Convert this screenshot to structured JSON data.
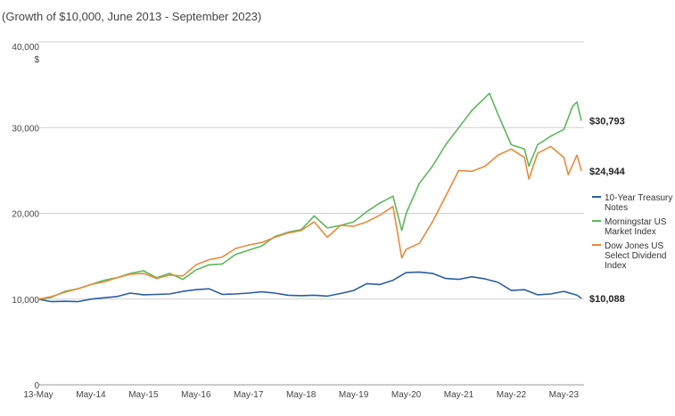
{
  "chart_data": {
    "type": "line",
    "subtitle": "(Growth of $10,000, June 2013 - September 2023)",
    "y_unit": "$",
    "ylim": [
      0,
      40000
    ],
    "yticks": [
      0,
      10000,
      20000,
      30000,
      40000
    ],
    "ytick_labels": [
      "0",
      "10,000",
      "20,000",
      "30,000",
      "40,000"
    ],
    "x_ticks": [
      "13-May",
      "May-14",
      "May-15",
      "May-16",
      "May-17",
      "May-18",
      "May-19",
      "May-20",
      "May-21",
      "May-22",
      "May-23"
    ],
    "x_tick_values": [
      "2013-05",
      "2014-05",
      "2015-05",
      "2016-05",
      "2017-05",
      "2018-05",
      "2019-05",
      "2020-05",
      "2021-05",
      "2022-05",
      "2023-05"
    ],
    "xlim": [
      "2013-05",
      "2023-09"
    ],
    "grid": true,
    "legend_position": "right",
    "series": [
      {
        "name": "10-Year Treasury Notes",
        "color": "#2a5d9f",
        "end_label": "$10,088",
        "points": [
          [
            "2013-05",
            10000
          ],
          [
            "2013-08",
            9700
          ],
          [
            "2013-11",
            9750
          ],
          [
            "2014-02",
            9700
          ],
          [
            "2014-05",
            10000
          ],
          [
            "2014-08",
            10150
          ],
          [
            "2014-11",
            10300
          ],
          [
            "2015-02",
            10700
          ],
          [
            "2015-05",
            10500
          ],
          [
            "2015-08",
            10550
          ],
          [
            "2015-11",
            10600
          ],
          [
            "2016-02",
            10900
          ],
          [
            "2016-05",
            11100
          ],
          [
            "2016-08",
            11200
          ],
          [
            "2016-11",
            10550
          ],
          [
            "2017-02",
            10600
          ],
          [
            "2017-05",
            10700
          ],
          [
            "2017-08",
            10850
          ],
          [
            "2017-11",
            10700
          ],
          [
            "2018-02",
            10450
          ],
          [
            "2018-05",
            10400
          ],
          [
            "2018-08",
            10450
          ],
          [
            "2018-11",
            10350
          ],
          [
            "2019-02",
            10650
          ],
          [
            "2019-05",
            11000
          ],
          [
            "2019-08",
            11800
          ],
          [
            "2019-11",
            11700
          ],
          [
            "2020-02",
            12200
          ],
          [
            "2020-05",
            13100
          ],
          [
            "2020-08",
            13150
          ],
          [
            "2020-11",
            13000
          ],
          [
            "2021-02",
            12400
          ],
          [
            "2021-05",
            12300
          ],
          [
            "2021-08",
            12600
          ],
          [
            "2021-11",
            12350
          ],
          [
            "2022-02",
            11950
          ],
          [
            "2022-05",
            11000
          ],
          [
            "2022-08",
            11100
          ],
          [
            "2022-11",
            10500
          ],
          [
            "2023-02",
            10600
          ],
          [
            "2023-05",
            10900
          ],
          [
            "2023-08",
            10450
          ],
          [
            "2023-09",
            10088
          ]
        ]
      },
      {
        "name": "Morningstar US Market Index",
        "color": "#5cb85c",
        "end_label": "$30,793",
        "points": [
          [
            "2013-05",
            10000
          ],
          [
            "2013-08",
            10200
          ],
          [
            "2013-11",
            10900
          ],
          [
            "2014-02",
            11200
          ],
          [
            "2014-05",
            11700
          ],
          [
            "2014-08",
            12200
          ],
          [
            "2014-11",
            12500
          ],
          [
            "2015-02",
            13000
          ],
          [
            "2015-05",
            13300
          ],
          [
            "2015-08",
            12500
          ],
          [
            "2015-11",
            13000
          ],
          [
            "2016-02",
            12300
          ],
          [
            "2016-05",
            13400
          ],
          [
            "2016-08",
            14000
          ],
          [
            "2016-11",
            14100
          ],
          [
            "2017-02",
            15200
          ],
          [
            "2017-05",
            15700
          ],
          [
            "2017-08",
            16200
          ],
          [
            "2017-11",
            17300
          ],
          [
            "2018-02",
            17800
          ],
          [
            "2018-05",
            18100
          ],
          [
            "2018-08",
            19700
          ],
          [
            "2018-11",
            18300
          ],
          [
            "2019-02",
            18600
          ],
          [
            "2019-05",
            19000
          ],
          [
            "2019-08",
            20200
          ],
          [
            "2019-11",
            21200
          ],
          [
            "2020-02",
            22000
          ],
          [
            "2020-04",
            18000
          ],
          [
            "2020-05",
            20000
          ],
          [
            "2020-08",
            23500
          ],
          [
            "2020-11",
            25500
          ],
          [
            "2021-02",
            28000
          ],
          [
            "2021-05",
            30000
          ],
          [
            "2021-08",
            32000
          ],
          [
            "2021-11",
            33500
          ],
          [
            "2021-12",
            34000
          ],
          [
            "2022-02",
            31500
          ],
          [
            "2022-05",
            28000
          ],
          [
            "2022-08",
            27500
          ],
          [
            "2022-09",
            25500
          ],
          [
            "2022-11",
            28000
          ],
          [
            "2023-02",
            29000
          ],
          [
            "2023-05",
            29800
          ],
          [
            "2023-07",
            32500
          ],
          [
            "2023-08",
            33000
          ],
          [
            "2023-09",
            30793
          ]
        ]
      },
      {
        "name": "Dow Jones US Select Dividend Index",
        "color": "#e88a3a",
        "end_label": "$24,944",
        "points": [
          [
            "2013-05",
            10000
          ],
          [
            "2013-08",
            10300
          ],
          [
            "2013-11",
            10800
          ],
          [
            "2014-02",
            11200
          ],
          [
            "2014-05",
            11700
          ],
          [
            "2014-08",
            12000
          ],
          [
            "2014-11",
            12500
          ],
          [
            "2015-02",
            12900
          ],
          [
            "2015-05",
            13000
          ],
          [
            "2015-08",
            12400
          ],
          [
            "2015-11",
            12800
          ],
          [
            "2016-02",
            12700
          ],
          [
            "2016-05",
            14000
          ],
          [
            "2016-08",
            14600
          ],
          [
            "2016-11",
            14900
          ],
          [
            "2017-02",
            15900
          ],
          [
            "2017-05",
            16300
          ],
          [
            "2017-08",
            16600
          ],
          [
            "2017-11",
            17200
          ],
          [
            "2018-02",
            17700
          ],
          [
            "2018-05",
            18000
          ],
          [
            "2018-08",
            19000
          ],
          [
            "2018-11",
            17200
          ],
          [
            "2019-02",
            18600
          ],
          [
            "2019-05",
            18500
          ],
          [
            "2019-08",
            19000
          ],
          [
            "2019-11",
            19800
          ],
          [
            "2020-02",
            20800
          ],
          [
            "2020-04",
            14800
          ],
          [
            "2020-05",
            15800
          ],
          [
            "2020-08",
            16500
          ],
          [
            "2020-11",
            19000
          ],
          [
            "2021-02",
            22000
          ],
          [
            "2021-05",
            25000
          ],
          [
            "2021-08",
            24900
          ],
          [
            "2021-11",
            25500
          ],
          [
            "2022-02",
            26800
          ],
          [
            "2022-05",
            27500
          ],
          [
            "2022-08",
            26500
          ],
          [
            "2022-09",
            24000
          ],
          [
            "2022-11",
            27000
          ],
          [
            "2023-02",
            27800
          ],
          [
            "2023-05",
            26500
          ],
          [
            "2023-06",
            24500
          ],
          [
            "2023-08",
            26800
          ],
          [
            "2023-09",
            24944
          ]
        ]
      }
    ]
  },
  "legend": [
    {
      "lines": [
        "10-Year Treasury",
        "Notes"
      ],
      "color": "#2a5d9f"
    },
    {
      "lines": [
        "Morningstar US",
        "Market Index"
      ],
      "color": "#5cb85c"
    },
    {
      "lines": [
        "Dow Jones US",
        "Select Dividend",
        "Index"
      ],
      "color": "#e88a3a"
    }
  ]
}
